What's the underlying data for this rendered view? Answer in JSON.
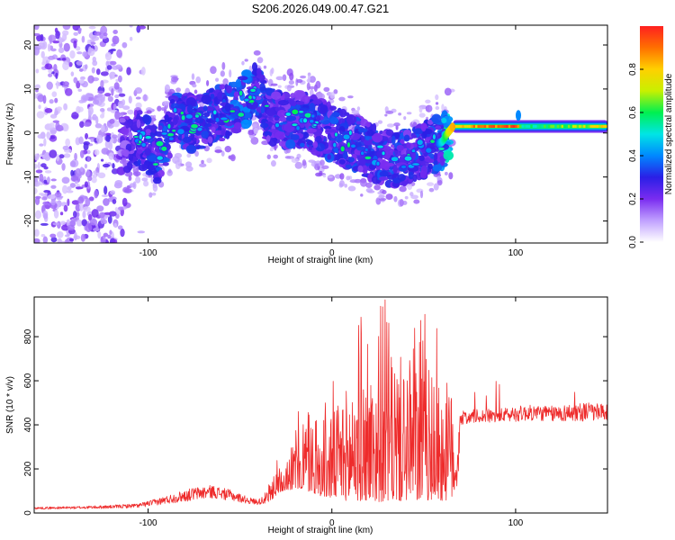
{
  "title": "S206.2026.049.00.47.G21",
  "colors": {
    "snr_line": "#ee2b2b",
    "frame": "#000000"
  },
  "chart_data": [
    {
      "type": "heatmap",
      "title": "S206.2026.049.00.47.G21",
      "xlabel": "Height of straight line (km)",
      "ylabel": "Frequency (Hz)",
      "xlim": [
        -162,
        150
      ],
      "ylim": [
        -25,
        24.5
      ],
      "xticks": [
        -100,
        0,
        100
      ],
      "xtick_labels": [
        "-100",
        "0",
        "100"
      ],
      "yticks": [
        20,
        10,
        0,
        -10,
        -20
      ],
      "ytick_labels": [
        "20",
        "10",
        "0",
        "-10",
        "-20"
      ],
      "colorbar": {
        "label": "Normalized spectral amplitude",
        "range": [
          0,
          1
        ],
        "ticks": [
          0.0,
          0.2,
          0.4,
          0.6,
          0.8
        ],
        "tick_labels": [
          "0.0",
          "0.2",
          "0.4",
          "0.6",
          "0.8"
        ],
        "colormap": [
          "#ffffff",
          "#c0a0ff",
          "#7a2cf0",
          "#2a1fe6",
          "#0088ff",
          "#00e5e5",
          "#00f050",
          "#c8f000",
          "#ffd000",
          "#ff7000",
          "#ff2020"
        ]
      },
      "noise_region_x": [
        -162,
        -115
      ],
      "ridge_x": [
        -115,
        -105,
        -95,
        -85,
        -75,
        -65,
        -55,
        -45,
        -40,
        -35,
        -25,
        -15,
        -5,
        5,
        15,
        25,
        35,
        45,
        55,
        60,
        63,
        66,
        100,
        103,
        150
      ],
      "ridge_freq": [
        -3,
        -1,
        -5,
        3,
        2,
        4,
        5,
        8,
        10,
        4,
        3,
        3,
        1,
        -1,
        -3,
        -5,
        -6,
        -5,
        -3,
        -2,
        0,
        1.5,
        1.5,
        1.5,
        1.5
      ],
      "ridge_amp": [
        0.2,
        0.28,
        0.3,
        0.32,
        0.3,
        0.3,
        0.32,
        0.35,
        0.3,
        0.28,
        0.3,
        0.3,
        0.3,
        0.3,
        0.3,
        0.3,
        0.3,
        0.3,
        0.3,
        0.35,
        0.5,
        0.85,
        0.95,
        0.55,
        0.8
      ]
    },
    {
      "type": "line",
      "xlabel": "Height of straight line (km)",
      "ylabel": "SNR (10 * v/v)",
      "xlim": [
        -162,
        150
      ],
      "ylim": [
        0,
        980
      ],
      "xticks": [
        -100,
        0,
        100
      ],
      "xtick_labels": [
        "-100",
        "0",
        "100"
      ],
      "yticks": [
        0,
        200,
        400,
        600,
        800
      ],
      "ytick_labels": [
        "0",
        "200",
        "400",
        "600",
        "800"
      ],
      "series": [
        {
          "name": "SNR",
          "x": [
            -162,
            -140,
            -120,
            -105,
            -95,
            -85,
            -75,
            -65,
            -55,
            -45,
            -40,
            -35,
            -30,
            -25,
            -20,
            -15,
            -10,
            -5,
            0,
            5,
            10,
            15,
            20,
            25,
            30,
            35,
            40,
            45,
            50,
            55,
            60,
            65,
            68,
            70,
            80,
            90,
            100,
            110,
            120,
            130,
            140,
            150
          ],
          "base": [
            20,
            22,
            25,
            30,
            45,
            60,
            75,
            85,
            70,
            50,
            45,
            60,
            120,
            160,
            180,
            200,
            180,
            170,
            190,
            220,
            230,
            250,
            260,
            260,
            270,
            270,
            270,
            260,
            260,
            250,
            240,
            230,
            200,
            430,
            440,
            440,
            450,
            455,
            450,
            455,
            460,
            450
          ],
          "spread": [
            10,
            12,
            15,
            20,
            30,
            45,
            60,
            60,
            50,
            30,
            25,
            60,
            120,
            180,
            250,
            320,
            300,
            320,
            420,
            520,
            600,
            650,
            680,
            700,
            720,
            720,
            720,
            700,
            680,
            640,
            620,
            560,
            300,
            40,
            40,
            40,
            45,
            45,
            45,
            50,
            55,
            50
          ]
        }
      ]
    }
  ]
}
